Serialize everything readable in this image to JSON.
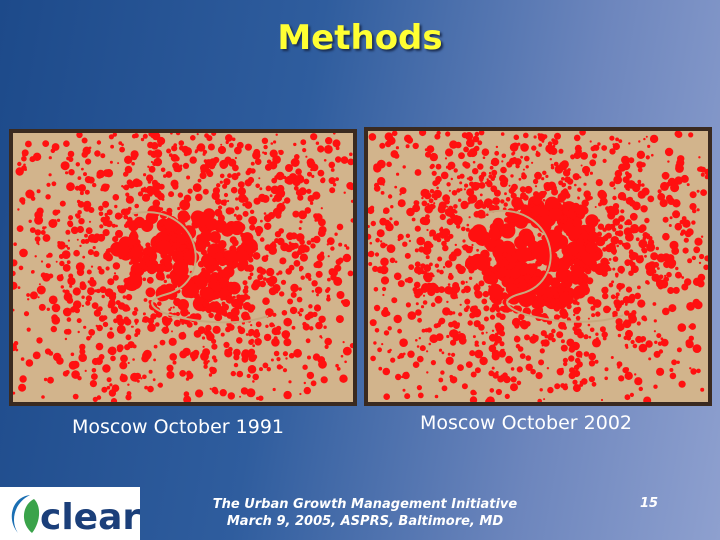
{
  "title": "Methods",
  "panels": [
    {
      "caption": "Moscow October 1991"
    },
    {
      "caption": "Moscow October 2002"
    }
  ],
  "footer": {
    "lines": [
      "The Urban Growth Management Initiative",
      "March 9, 2005, ASPRS, Baltimore, MD"
    ],
    "page_number": "15"
  },
  "logo": {
    "text": "clear"
  }
}
